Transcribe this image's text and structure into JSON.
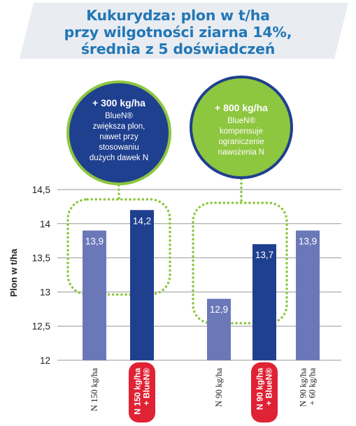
{
  "title": {
    "line1": "Kukurydza: plon w t/ha",
    "line2": "przy wilgotności ziarna 14%,",
    "line3": "średnia z 5 doświadczeń"
  },
  "callouts": [
    {
      "head": "+ 300 kg/ha",
      "body": [
        "BlueN®",
        "zwiększa plon,",
        "nawet przy",
        "stosowaniu",
        "dużych dawek N"
      ]
    },
    {
      "head": "+ 800 kg/ha",
      "body": [
        "BlueN®",
        "kompensuje",
        "ograniczenie",
        "nawożenia N"
      ]
    }
  ],
  "colors": {
    "title": "#2277b6",
    "bar_light": "#6b78b8",
    "bar_dark": "#1f3f8f",
    "highlight": "#e02235",
    "dotted": "#8dc63f",
    "callout1": "#1f3f8f",
    "callout2": "#8dc63f"
  },
  "chart_data": {
    "type": "bar",
    "ylabel": "Plon w t/ha",
    "ylim": [
      12,
      14.5
    ],
    "yticks": [
      "12",
      "12,5",
      "13",
      "13,5",
      "14",
      "14,5"
    ],
    "grid": true,
    "categories": [
      [
        "N 150 kg/ha"
      ],
      [
        "N 150 kg/ha",
        "+ BlueN®"
      ],
      [
        "N 90 kg/ha"
      ],
      [
        "N 90 kg/ha",
        "+ BlueN®"
      ],
      [
        "N 90 kg/ha",
        "+ 60 kg/ha"
      ]
    ],
    "values": [
      13.9,
      14.2,
      12.9,
      13.7,
      13.9
    ],
    "value_labels": [
      "13,9",
      "14,2",
      "12,9",
      "13,7",
      "13,9"
    ],
    "bar_colors": [
      "light",
      "dark",
      "light",
      "dark",
      "light"
    ],
    "highlighted_categories": [
      1,
      3
    ]
  }
}
